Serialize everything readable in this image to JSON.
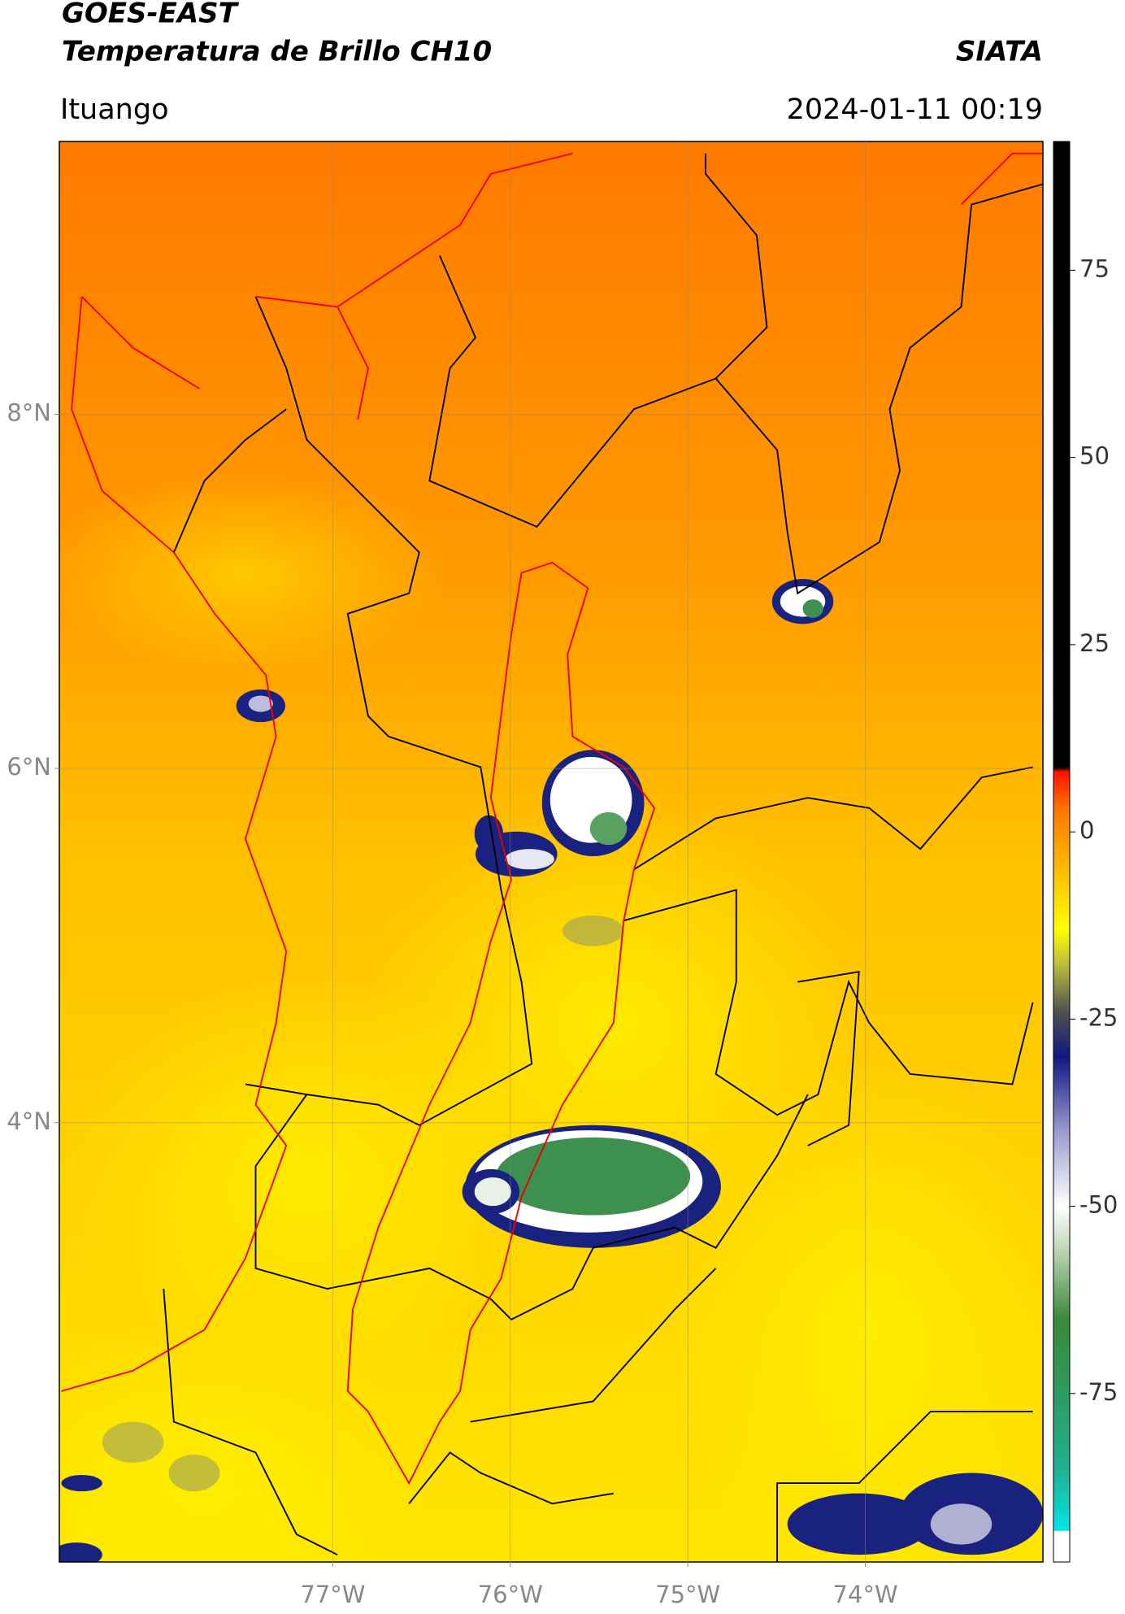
{
  "header": {
    "title": "GOES-EAST",
    "subtitle": "Temperatura de Brillo CH10",
    "source": "SIATA",
    "location": "Ituango",
    "timestamp": "2024-01-11 00:19"
  },
  "map": {
    "xlim": [
      -78.54,
      -73.0
    ],
    "ylim": [
      1.52,
      9.54
    ],
    "grid": true,
    "xticks": [
      {
        "value": -77,
        "label": "77°W"
      },
      {
        "value": -76,
        "label": "76°W"
      },
      {
        "value": -75,
        "label": "75°W"
      },
      {
        "value": -74,
        "label": "74°W"
      }
    ],
    "yticks": [
      {
        "value": 4,
        "label": "4°N"
      },
      {
        "value": 6,
        "label": "6°N"
      },
      {
        "value": 8,
        "label": "8°N"
      }
    ]
  },
  "colorbar": {
    "lim": [
      -97.5,
      92.2
    ],
    "ticks": [
      -75,
      -50,
      -25,
      0,
      25,
      50,
      75
    ],
    "colormap": [
      {
        "value": -97.5,
        "color": "#ffffff"
      },
      {
        "value": -93.4,
        "color": "#ffffff"
      },
      {
        "value": -93.3,
        "color": "#00e5e5"
      },
      {
        "value": -85,
        "color": "#20b090"
      },
      {
        "value": -75,
        "color": "#2e9a60"
      },
      {
        "value": -65,
        "color": "#3a8a3a"
      },
      {
        "value": -55,
        "color": "#c8dcc0"
      },
      {
        "value": -50,
        "color": "#ffffff"
      },
      {
        "value": -40,
        "color": "#9a9ad0"
      },
      {
        "value": -30,
        "color": "#101880"
      },
      {
        "value": -24,
        "color": "#505050"
      },
      {
        "value": -18,
        "color": "#b8b840"
      },
      {
        "value": -13,
        "color": "#ffff00"
      },
      {
        "value": -5,
        "color": "#ffbb00"
      },
      {
        "value": 3,
        "color": "#ff7700"
      },
      {
        "value": 8,
        "color": "#ff1100"
      },
      {
        "value": 8.6,
        "color": "#000000"
      },
      {
        "value": 92.2,
        "color": "#000000"
      }
    ]
  }
}
